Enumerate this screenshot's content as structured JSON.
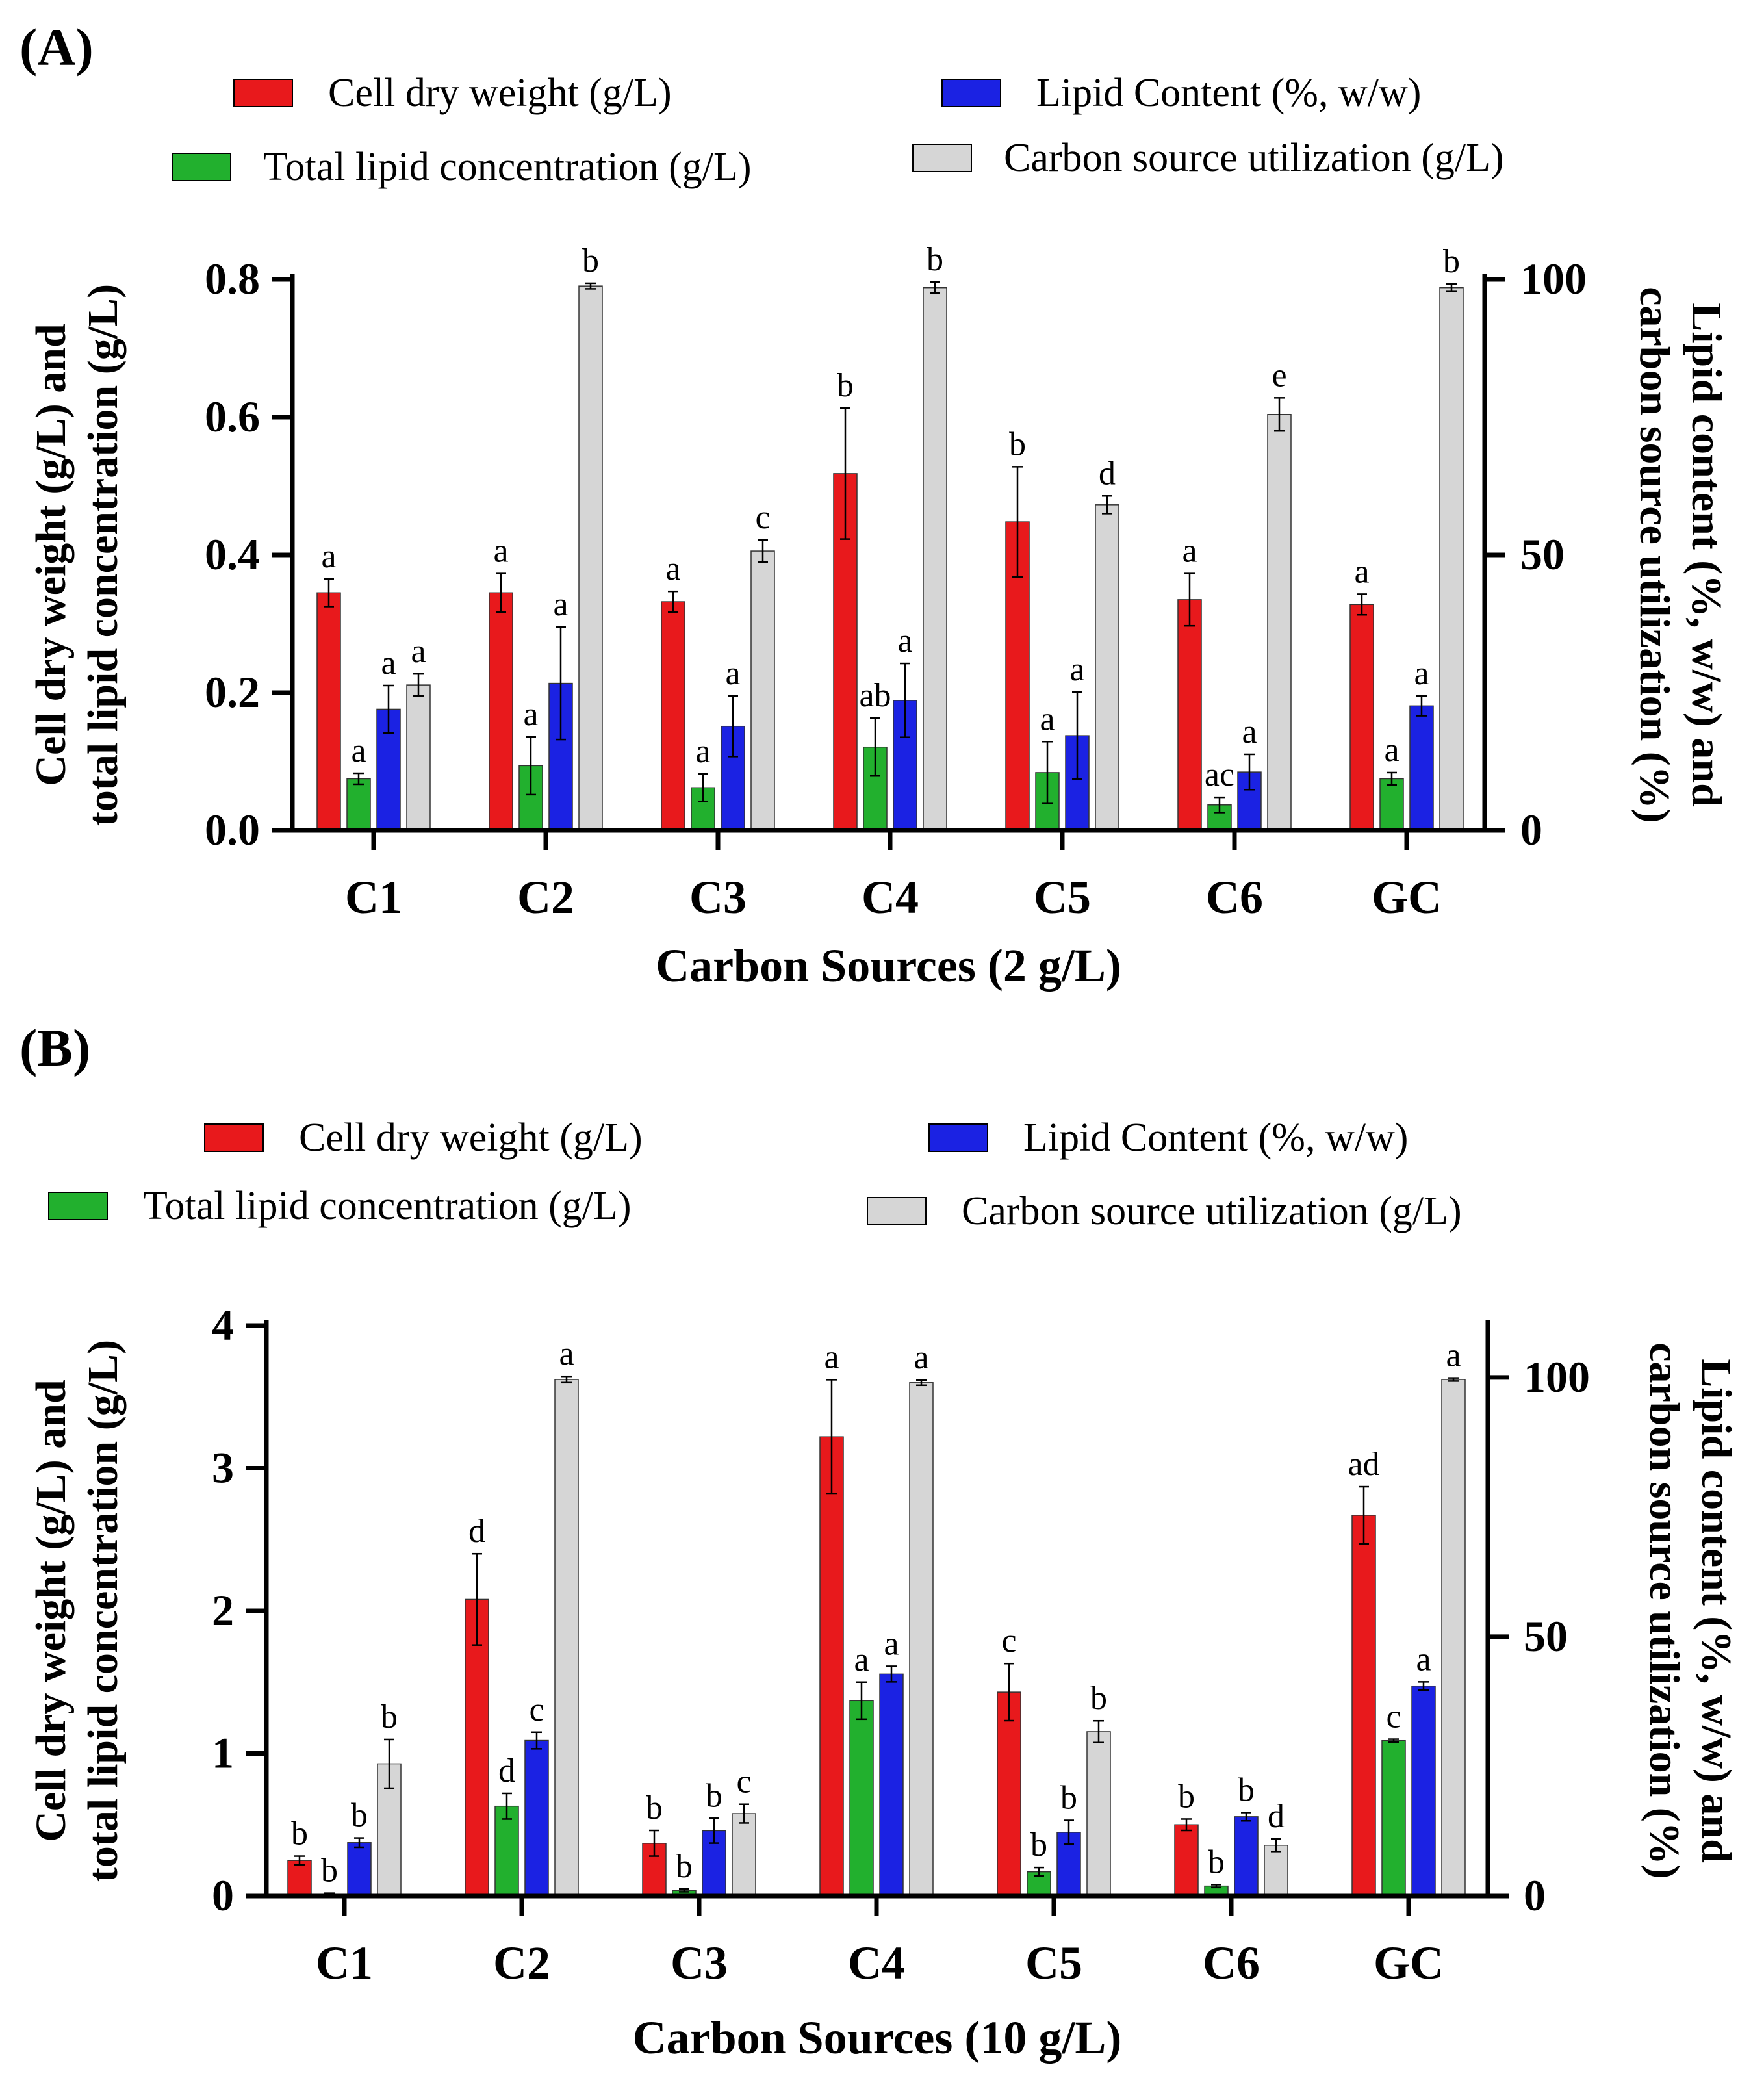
{
  "colors": {
    "cell_dry_weight": "#e8191c",
    "total_lipid": "#22b02e",
    "lipid_content": "#1b22e3",
    "carbon_utilization": "#d6d6d6",
    "axis": "#000000"
  },
  "chart_data": [
    {
      "type": "bar",
      "panel_label": "(A)",
      "title": "",
      "xlabel": "Carbon Sources (2 g/L)",
      "ylabel": "Cell dry weight (g/L) and total lipid concentration (g/L)",
      "ylabel_lines": [
        "Cell dry weight (g/L) and",
        "total lipid concentration (g/L)"
      ],
      "y2label": "Lipid content (%, w/w) and carbon source utilization (%)",
      "y2label_lines": [
        "Lipid content (%, w/w) and",
        "carbon source utilization (%)"
      ],
      "ylim": [
        0,
        0.8
      ],
      "y2lim": [
        0,
        100
      ],
      "yticks": [
        0.0,
        0.2,
        0.4,
        0.6,
        0.8
      ],
      "ytick_labels": [
        "0.0",
        "0.2",
        "0.4",
        "0.6",
        "0.8"
      ],
      "y2ticks": [
        0,
        50,
        100
      ],
      "y2tick_labels": [
        "0",
        "50",
        "100"
      ],
      "categories": [
        "C1",
        "C2",
        "C3",
        "C4",
        "C5",
        "C6",
        "GC"
      ],
      "legend": [
        {
          "label": "Cell dry weight (g/L)",
          "color_key": "cell_dry_weight"
        },
        {
          "label": "Lipid Content (%, w/w)",
          "color_key": "lipid_content"
        },
        {
          "label": "Total lipid concentration (g/L)",
          "color_key": "total_lipid"
        },
        {
          "label": "Carbon source utilization (g/L)",
          "color_key": "carbon_utilization"
        }
      ],
      "series": [
        {
          "name": "Cell dry weight (g/L)",
          "color_key": "cell_dry_weight",
          "axis": "left",
          "values": [
            0.345,
            0.345,
            0.332,
            0.518,
            0.448,
            0.335,
            0.328
          ],
          "errors": [
            0.02,
            0.028,
            0.015,
            0.095,
            0.08,
            0.038,
            0.015
          ],
          "letters": [
            "a",
            "a",
            "a",
            "b",
            "b",
            "a",
            "a"
          ]
        },
        {
          "name": "Total lipid concentration (g/L)",
          "color_key": "total_lipid",
          "axis": "left",
          "values": [
            0.075,
            0.094,
            0.062,
            0.121,
            0.084,
            0.037,
            0.075
          ],
          "errors": [
            0.008,
            0.042,
            0.02,
            0.042,
            0.045,
            0.011,
            0.009
          ],
          "letters": [
            "a",
            "a",
            "a",
            "ab",
            "a",
            "ac",
            "a"
          ]
        },
        {
          "name": "Lipid Content (%, w/w)",
          "color_key": "lipid_content",
          "axis": "right",
          "values": [
            22,
            26.7,
            18.9,
            23.6,
            17.2,
            10.6,
            22.6
          ],
          "errors": [
            4.3,
            10.2,
            5.5,
            6.7,
            7.9,
            3.2,
            1.8
          ],
          "letters": [
            "a",
            "a",
            "a",
            "a",
            "a",
            "a",
            "a"
          ]
        },
        {
          "name": "Carbon source utilization (g/L)",
          "color_key": "carbon_utilization",
          "axis": "right",
          "values": [
            26.4,
            98.8,
            50.7,
            98.5,
            59.1,
            75.5,
            98.5
          ],
          "errors": [
            2,
            0.5,
            2,
            1,
            1.6,
            3,
            0.7
          ],
          "letters": [
            "a",
            "b",
            "c",
            "b",
            "d",
            "e",
            "b"
          ]
        }
      ]
    },
    {
      "type": "bar",
      "panel_label": "(B)",
      "title": "",
      "xlabel": "Carbon Sources (10 g/L)",
      "ylabel": "Cell dry weight (g/L) and total lipid concentration (g/L)",
      "ylabel_lines": [
        "Cell dry weight (g/L) and",
        "total lipid concentration (g/L)"
      ],
      "y2label": "Lipid content (%, w/w) and carbon source utilization (%)",
      "y2label_lines": [
        "Lipid content (%, w/w) and",
        "carbon source utilization (%)"
      ],
      "ylim": [
        0,
        4
      ],
      "y2lim": [
        0,
        110
      ],
      "yticks": [
        0,
        1,
        2,
        3,
        4
      ],
      "ytick_labels": [
        "0",
        "1",
        "2",
        "3",
        "4"
      ],
      "y2ticks": [
        0,
        50,
        100
      ],
      "y2tick_labels": [
        "0",
        "50",
        "100"
      ],
      "categories": [
        "C1",
        "C2",
        "C3",
        "C4",
        "C5",
        "C6",
        "GC"
      ],
      "legend": [
        {
          "label": "Cell dry weight (g/L)",
          "color_key": "cell_dry_weight"
        },
        {
          "label": "Lipid Content (%, w/w)",
          "color_key": "lipid_content"
        },
        {
          "label": "Total lipid concentration (g/L)",
          "color_key": "total_lipid"
        },
        {
          "label": "Carbon source utilization (g/L)",
          "color_key": "carbon_utilization"
        }
      ],
      "series": [
        {
          "name": "Cell dry weight (g/L)",
          "color_key": "cell_dry_weight",
          "axis": "left",
          "values": [
            0.25,
            2.08,
            0.37,
            3.22,
            1.43,
            0.5,
            2.67
          ],
          "errors": [
            0.03,
            0.32,
            0.09,
            0.4,
            0.2,
            0.04,
            0.2
          ],
          "letters": [
            "b",
            "d",
            "b",
            "a",
            "c",
            "b",
            "ad"
          ]
        },
        {
          "name": "Total lipid concentration (g/L)",
          "color_key": "total_lipid",
          "axis": "left",
          "values": [
            0.01,
            0.63,
            0.04,
            1.37,
            0.17,
            0.07,
            1.09
          ],
          "errors": [
            0.01,
            0.09,
            0.01,
            0.13,
            0.03,
            0.01,
            0.01
          ],
          "letters": [
            "b",
            "d",
            "b",
            "a",
            "b",
            "b",
            "c"
          ]
        },
        {
          "name": "Lipid Content (%, w/w)",
          "color_key": "lipid_content",
          "axis": "right",
          "values": [
            10.3,
            30,
            12.6,
            42.8,
            12.3,
            15.3,
            40.5
          ],
          "errors": [
            0.9,
            1.6,
            2.4,
            1.5,
            2.3,
            0.8,
            0.8
          ],
          "letters": [
            "b",
            "c",
            "b",
            "a",
            "b",
            "b",
            "a"
          ]
        },
        {
          "name": "Carbon source utilization (g/L)",
          "color_key": "carbon_utilization",
          "axis": "right",
          "values": [
            25.5,
            99.6,
            15.9,
            99,
            31.7,
            9.8,
            99.6
          ],
          "errors": [
            4.7,
            0.6,
            1.8,
            0.5,
            2.1,
            1.2,
            0.3
          ],
          "letters": [
            "b",
            "a",
            "c",
            "a",
            "b",
            "d",
            "a"
          ]
        }
      ]
    }
  ]
}
